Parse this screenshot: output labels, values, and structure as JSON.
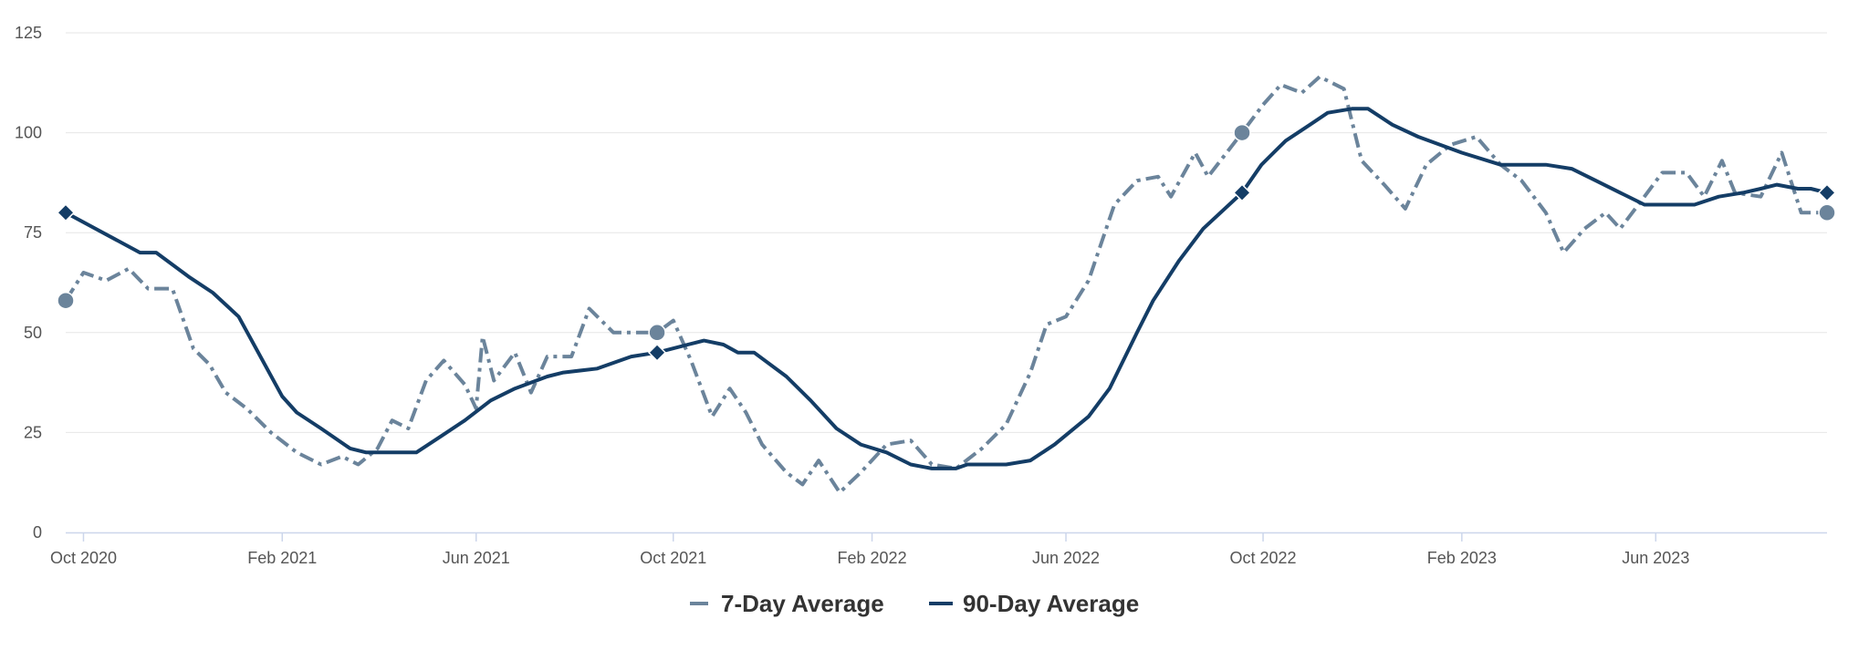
{
  "chart_data": {
    "type": "line",
    "title": "",
    "xlabel": "",
    "ylabel": "",
    "ylim": [
      0,
      125
    ],
    "xlim": [
      "2020-09-20",
      "2023-09-15"
    ],
    "y_ticks": [
      "0",
      "25",
      "50",
      "75",
      "100",
      "125"
    ],
    "y_tick_values": [
      0,
      25,
      50,
      75,
      100,
      125
    ],
    "x_ticks": [
      {
        "label": "Oct 2020",
        "date": "2020-10-01"
      },
      {
        "label": "Feb 2021",
        "date": "2021-02-01"
      },
      {
        "label": "Jun 2021",
        "date": "2021-06-01"
      },
      {
        "label": "Oct 2021",
        "date": "2021-10-01"
      },
      {
        "label": "Feb 2022",
        "date": "2022-02-01"
      },
      {
        "label": "Jun 2022",
        "date": "2022-06-01"
      },
      {
        "label": "Oct 2022",
        "date": "2022-10-01"
      },
      {
        "label": "Feb 2023",
        "date": "2023-02-01"
      },
      {
        "label": "Jun 2023",
        "date": "2023-06-01"
      }
    ],
    "grid": true,
    "legend_position": "bottom-center",
    "series": [
      {
        "name": "7-Day Average",
        "color": "#6b849b",
        "dash": "dashed",
        "marker": "circle",
        "marked_points": [
          {
            "x": "2020-09-20",
            "y": 58
          },
          {
            "x": "2021-09-21",
            "y": 50
          },
          {
            "x": "2022-09-18",
            "y": 100
          },
          {
            "x": "2023-09-15",
            "y": 80
          }
        ],
        "points": [
          {
            "x": "2020-09-20",
            "y": 58
          },
          {
            "x": "2020-10-01",
            "y": 65
          },
          {
            "x": "2020-10-15",
            "y": 63
          },
          {
            "x": "2020-10-29",
            "y": 66
          },
          {
            "x": "2020-11-10",
            "y": 61
          },
          {
            "x": "2020-11-25",
            "y": 61
          },
          {
            "x": "2020-12-08",
            "y": 46
          },
          {
            "x": "2020-12-18",
            "y": 42
          },
          {
            "x": "2020-12-28",
            "y": 35
          },
          {
            "x": "2021-01-10",
            "y": 31
          },
          {
            "x": "2021-01-25",
            "y": 25
          },
          {
            "x": "2021-02-10",
            "y": 20
          },
          {
            "x": "2021-02-25",
            "y": 17
          },
          {
            "x": "2021-03-10",
            "y": 19
          },
          {
            "x": "2021-03-20",
            "y": 17
          },
          {
            "x": "2021-04-01",
            "y": 21
          },
          {
            "x": "2021-04-10",
            "y": 28
          },
          {
            "x": "2021-04-20",
            "y": 26
          },
          {
            "x": "2021-05-01",
            "y": 38
          },
          {
            "x": "2021-05-12",
            "y": 43
          },
          {
            "x": "2021-05-25",
            "y": 37
          },
          {
            "x": "2021-06-01",
            "y": 31
          },
          {
            "x": "2021-06-05",
            "y": 49
          },
          {
            "x": "2021-06-12",
            "y": 38
          },
          {
            "x": "2021-06-25",
            "y": 45
          },
          {
            "x": "2021-07-05",
            "y": 35
          },
          {
            "x": "2021-07-15",
            "y": 44
          },
          {
            "x": "2021-07-30",
            "y": 44
          },
          {
            "x": "2021-08-10",
            "y": 56
          },
          {
            "x": "2021-08-25",
            "y": 50
          },
          {
            "x": "2021-09-21",
            "y": 50
          },
          {
            "x": "2021-10-01",
            "y": 53
          },
          {
            "x": "2021-10-12",
            "y": 43
          },
          {
            "x": "2021-10-25",
            "y": 29
          },
          {
            "x": "2021-11-05",
            "y": 36
          },
          {
            "x": "2021-11-15",
            "y": 30
          },
          {
            "x": "2021-11-25",
            "y": 22
          },
          {
            "x": "2021-12-10",
            "y": 15
          },
          {
            "x": "2021-12-20",
            "y": 12
          },
          {
            "x": "2021-12-30",
            "y": 18
          },
          {
            "x": "2022-01-12",
            "y": 10
          },
          {
            "x": "2022-01-25",
            "y": 15
          },
          {
            "x": "2022-02-10",
            "y": 22
          },
          {
            "x": "2022-02-25",
            "y": 23
          },
          {
            "x": "2022-03-10",
            "y": 17
          },
          {
            "x": "2022-03-25",
            "y": 16
          },
          {
            "x": "2022-04-10",
            "y": 21
          },
          {
            "x": "2022-04-25",
            "y": 27
          },
          {
            "x": "2022-05-10",
            "y": 40
          },
          {
            "x": "2022-05-20",
            "y": 52
          },
          {
            "x": "2022-06-01",
            "y": 54
          },
          {
            "x": "2022-06-15",
            "y": 63
          },
          {
            "x": "2022-07-01",
            "y": 82
          },
          {
            "x": "2022-07-15",
            "y": 88
          },
          {
            "x": "2022-07-28",
            "y": 89
          },
          {
            "x": "2022-08-05",
            "y": 84
          },
          {
            "x": "2022-08-20",
            "y": 95
          },
          {
            "x": "2022-08-28",
            "y": 89
          },
          {
            "x": "2022-09-18",
            "y": 100
          },
          {
            "x": "2022-10-01",
            "y": 107
          },
          {
            "x": "2022-10-12",
            "y": 112
          },
          {
            "x": "2022-10-25",
            "y": 110
          },
          {
            "x": "2022-11-05",
            "y": 114
          },
          {
            "x": "2022-11-20",
            "y": 111
          },
          {
            "x": "2022-12-01",
            "y": 93
          },
          {
            "x": "2022-12-15",
            "y": 87
          },
          {
            "x": "2022-12-28",
            "y": 81
          },
          {
            "x": "2023-01-10",
            "y": 92
          },
          {
            "x": "2023-01-25",
            "y": 97
          },
          {
            "x": "2023-02-10",
            "y": 99
          },
          {
            "x": "2023-02-25",
            "y": 92
          },
          {
            "x": "2023-03-10",
            "y": 88
          },
          {
            "x": "2023-03-25",
            "y": 80
          },
          {
            "x": "2023-04-05",
            "y": 70
          },
          {
            "x": "2023-04-18",
            "y": 76
          },
          {
            "x": "2023-05-01",
            "y": 80
          },
          {
            "x": "2023-05-10",
            "y": 76
          },
          {
            "x": "2023-05-25",
            "y": 84
          },
          {
            "x": "2023-06-05",
            "y": 90
          },
          {
            "x": "2023-06-20",
            "y": 90
          },
          {
            "x": "2023-07-01",
            "y": 84
          },
          {
            "x": "2023-07-12",
            "y": 93
          },
          {
            "x": "2023-07-20",
            "y": 85
          },
          {
            "x": "2023-08-05",
            "y": 84
          },
          {
            "x": "2023-08-18",
            "y": 95
          },
          {
            "x": "2023-08-30",
            "y": 80
          },
          {
            "x": "2023-09-15",
            "y": 80
          }
        ]
      },
      {
        "name": "90-Day Average",
        "color": "#143d66",
        "dash": "solid",
        "marker": "diamond",
        "marked_points": [
          {
            "x": "2020-09-20",
            "y": 80
          },
          {
            "x": "2021-09-21",
            "y": 45
          },
          {
            "x": "2022-09-18",
            "y": 85
          },
          {
            "x": "2023-09-15",
            "y": 85
          }
        ],
        "points": [
          {
            "x": "2020-09-20",
            "y": 80
          },
          {
            "x": "2020-11-05",
            "y": 70
          },
          {
            "x": "2020-11-15",
            "y": 70
          },
          {
            "x": "2020-12-05",
            "y": 64
          },
          {
            "x": "2020-12-20",
            "y": 60
          },
          {
            "x": "2021-01-05",
            "y": 54
          },
          {
            "x": "2021-02-01",
            "y": 34
          },
          {
            "x": "2021-02-10",
            "y": 30
          },
          {
            "x": "2021-02-25",
            "y": 26
          },
          {
            "x": "2021-03-15",
            "y": 21
          },
          {
            "x": "2021-03-25",
            "y": 20
          },
          {
            "x": "2021-04-25",
            "y": 20
          },
          {
            "x": "2021-05-10",
            "y": 24
          },
          {
            "x": "2021-05-25",
            "y": 28
          },
          {
            "x": "2021-06-10",
            "y": 33
          },
          {
            "x": "2021-06-25",
            "y": 36
          },
          {
            "x": "2021-07-15",
            "y": 39
          },
          {
            "x": "2021-07-25",
            "y": 40
          },
          {
            "x": "2021-08-15",
            "y": 41
          },
          {
            "x": "2021-09-05",
            "y": 44
          },
          {
            "x": "2021-09-21",
            "y": 45
          },
          {
            "x": "2021-10-10",
            "y": 47
          },
          {
            "x": "2021-10-20",
            "y": 48
          },
          {
            "x": "2021-11-01",
            "y": 47
          },
          {
            "x": "2021-11-10",
            "y": 45
          },
          {
            "x": "2021-11-20",
            "y": 45
          },
          {
            "x": "2021-12-10",
            "y": 39
          },
          {
            "x": "2021-12-25",
            "y": 33
          },
          {
            "x": "2022-01-10",
            "y": 26
          },
          {
            "x": "2022-01-25",
            "y": 22
          },
          {
            "x": "2022-02-10",
            "y": 20
          },
          {
            "x": "2022-02-25",
            "y": 17
          },
          {
            "x": "2022-03-10",
            "y": 16
          },
          {
            "x": "2022-03-25",
            "y": 16
          },
          {
            "x": "2022-04-01",
            "y": 17
          },
          {
            "x": "2022-04-25",
            "y": 17
          },
          {
            "x": "2022-05-10",
            "y": 18
          },
          {
            "x": "2022-05-25",
            "y": 22
          },
          {
            "x": "2022-06-15",
            "y": 29
          },
          {
            "x": "2022-06-28",
            "y": 36
          },
          {
            "x": "2022-07-15",
            "y": 50
          },
          {
            "x": "2022-07-25",
            "y": 58
          },
          {
            "x": "2022-08-10",
            "y": 68
          },
          {
            "x": "2022-08-25",
            "y": 76
          },
          {
            "x": "2022-09-18",
            "y": 85
          },
          {
            "x": "2022-09-30",
            "y": 92
          },
          {
            "x": "2022-10-15",
            "y": 98
          },
          {
            "x": "2022-10-30",
            "y": 102
          },
          {
            "x": "2022-11-10",
            "y": 105
          },
          {
            "x": "2022-11-25",
            "y": 106
          },
          {
            "x": "2022-12-05",
            "y": 106
          },
          {
            "x": "2022-12-20",
            "y": 102
          },
          {
            "x": "2023-01-05",
            "y": 99
          },
          {
            "x": "2023-02-01",
            "y": 95
          },
          {
            "x": "2023-02-25",
            "y": 92
          },
          {
            "x": "2023-03-25",
            "y": 92
          },
          {
            "x": "2023-04-10",
            "y": 91
          },
          {
            "x": "2023-04-25",
            "y": 88
          },
          {
            "x": "2023-05-10",
            "y": 85
          },
          {
            "x": "2023-05-25",
            "y": 82
          },
          {
            "x": "2023-06-25",
            "y": 82
          },
          {
            "x": "2023-07-10",
            "y": 84
          },
          {
            "x": "2023-07-25",
            "y": 85
          },
          {
            "x": "2023-08-05",
            "y": 86
          },
          {
            "x": "2023-08-15",
            "y": 87
          },
          {
            "x": "2023-08-28",
            "y": 86
          },
          {
            "x": "2023-09-05",
            "y": 86
          },
          {
            "x": "2023-09-15",
            "y": 85
          }
        ]
      }
    ]
  }
}
